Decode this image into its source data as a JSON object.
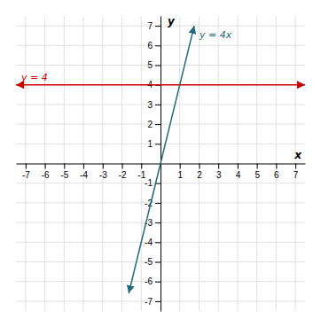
{
  "chart_data": {
    "type": "line",
    "xlabel": "x",
    "ylabel": "y",
    "xlim": [
      -7.5,
      7.5
    ],
    "ylim": [
      -7.5,
      7.5
    ],
    "xticks": [
      -7,
      -6,
      -5,
      -4,
      -3,
      -2,
      -1,
      1,
      2,
      3,
      4,
      5,
      6,
      7
    ],
    "yticks": [
      -7,
      -6,
      -5,
      -4,
      -3,
      -2,
      -1,
      1,
      2,
      3,
      4,
      5,
      6,
      7
    ],
    "grid": true,
    "series": [
      {
        "name": "y = 4",
        "color": "#cc0000",
        "x": [
          -7.5,
          7.5
        ],
        "values": [
          4,
          4
        ]
      },
      {
        "name": "y = 4x",
        "color": "#1f6b78",
        "x": [
          -1.65,
          1.75
        ],
        "values": [
          -6.6,
          7
        ]
      }
    ]
  }
}
